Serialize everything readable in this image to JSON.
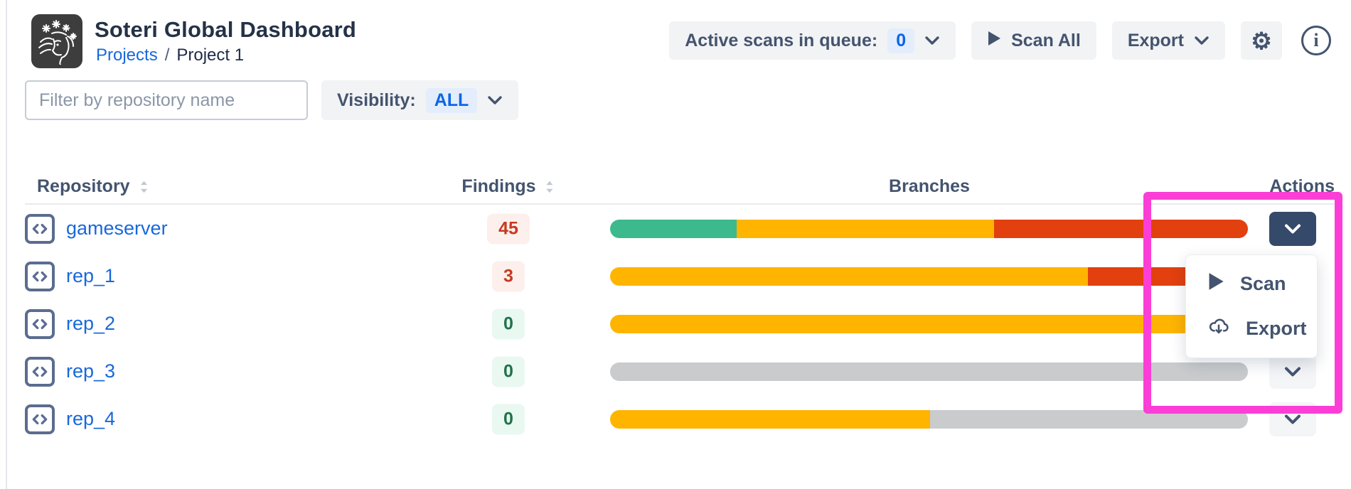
{
  "header": {
    "title": "Soteri Global Dashboard",
    "breadcrumb": {
      "link": "Projects",
      "separator": "/",
      "current": "Project 1"
    },
    "queue_button": {
      "label": "Active scans in queue:",
      "count": "0"
    },
    "scan_all_label": "Scan All",
    "export_label": "Export"
  },
  "toolbar": {
    "filter_placeholder": "Filter by repository name",
    "visibility_label": "Visibility:",
    "visibility_value": "ALL"
  },
  "table": {
    "headers": {
      "repository": "Repository",
      "findings": "Findings",
      "branches": "Branches",
      "actions": "Actions"
    }
  },
  "repos": [
    {
      "name": "gameserver",
      "findings": "45",
      "findings_level": "red",
      "branches": [
        {
          "color": "green",
          "percent": 19.8
        },
        {
          "color": "yellow",
          "percent": 40.4
        },
        {
          "color": "red",
          "percent": 39.8
        }
      ]
    },
    {
      "name": "rep_1",
      "findings": "3",
      "findings_level": "red",
      "branches": [
        {
          "color": "yellow",
          "percent": 74.9
        },
        {
          "color": "red",
          "percent": 25.1
        }
      ]
    },
    {
      "name": "rep_2",
      "findings": "0",
      "findings_level": "green",
      "branches": [
        {
          "color": "yellow",
          "percent": 100
        }
      ]
    },
    {
      "name": "rep_3",
      "findings": "0",
      "findings_level": "green",
      "branches": [
        {
          "color": "gray",
          "percent": 100
        }
      ]
    },
    {
      "name": "rep_4",
      "findings": "0",
      "findings_level": "green",
      "branches": [
        {
          "color": "yellow",
          "percent": 50.2
        },
        {
          "color": "gray",
          "percent": 49.8
        }
      ]
    }
  ],
  "menu": {
    "items": [
      {
        "icon": "play-icon",
        "label": "Scan"
      },
      {
        "icon": "cloud-download-icon",
        "label": "Export"
      }
    ]
  },
  "palette": {
    "green": "#3CB98D",
    "yellow": "#FFB400",
    "red": "#E2400F",
    "gray": "#C9CBCD",
    "magenta": "#FB3ED6",
    "accent_blue": "#1868DB",
    "slate": "#44546F",
    "dark_button": "#35496B"
  }
}
